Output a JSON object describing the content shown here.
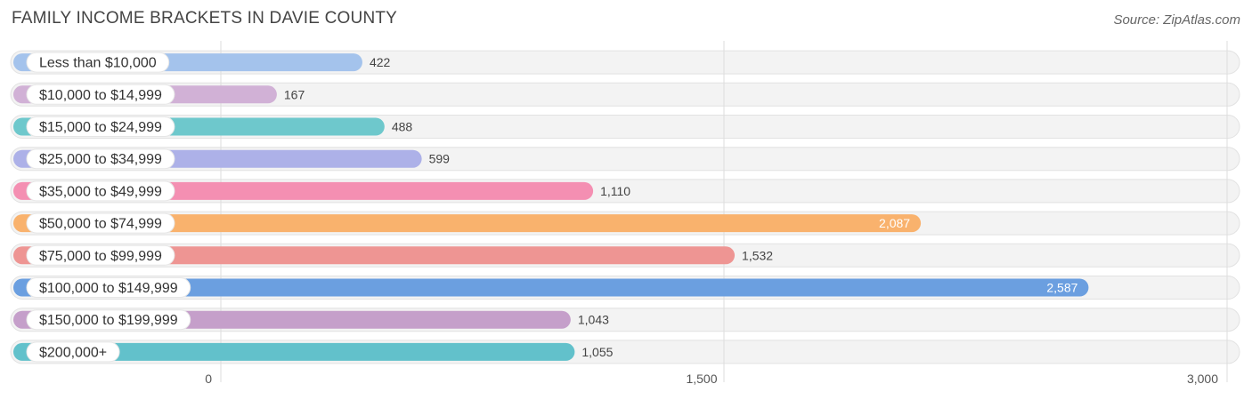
{
  "header": {
    "title": "FAMILY INCOME BRACKETS IN DAVIE COUNTY",
    "source": "Source: ZipAtlas.com"
  },
  "chart_data": {
    "type": "bar",
    "orientation": "horizontal",
    "title": "FAMILY INCOME BRACKETS IN DAVIE COUNTY",
    "categories": [
      "Less than $10,000",
      "$10,000 to $14,999",
      "$15,000 to $24,999",
      "$25,000 to $34,999",
      "$35,000 to $49,999",
      "$50,000 to $74,999",
      "$75,000 to $99,999",
      "$100,000 to $149,999",
      "$150,000 to $199,999",
      "$200,000+"
    ],
    "values": [
      422,
      167,
      488,
      599,
      1110,
      2087,
      1532,
      2587,
      1043,
      1055
    ],
    "value_labels": [
      "422",
      "167",
      "488",
      "599",
      "1,110",
      "2,087",
      "1,532",
      "2,587",
      "1,043",
      "1,055"
    ],
    "colors": [
      "#a4c3ec",
      "#d1b1d6",
      "#6ec8cc",
      "#adb1e8",
      "#f48fb2",
      "#f9b26d",
      "#ee9593",
      "#6b9fe0",
      "#c59fca",
      "#62c1cb"
    ],
    "xlim": [
      0,
      3000
    ],
    "xticks": [
      0,
      1500,
      3000
    ],
    "xtick_labels": [
      "0",
      "1,500",
      "3,000"
    ],
    "grid": true,
    "legend": "none"
  }
}
